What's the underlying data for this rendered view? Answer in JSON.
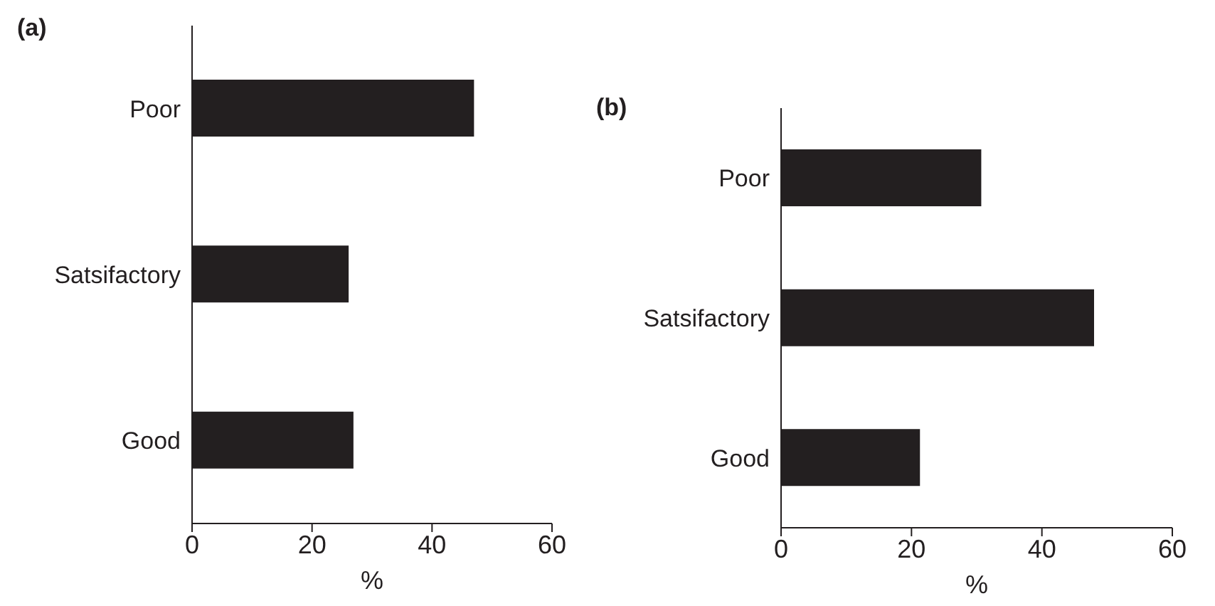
{
  "chart_data": [
    {
      "type": "bar",
      "title": "(a)",
      "orientation": "horizontal",
      "categories": [
        "Poor",
        "Satsifactory",
        "Good"
      ],
      "values": [
        47.0,
        26.1,
        26.9
      ],
      "color": "#231f20",
      "xlim": [
        0,
        60
      ],
      "xticks": [
        0,
        20,
        40,
        60
      ],
      "xlabel": "%",
      "grid": false,
      "legend": false
    },
    {
      "type": "bar",
      "title": "(b)",
      "orientation": "horizontal",
      "categories": [
        "Poor",
        "Satsifactory",
        "Good"
      ],
      "values": [
        30.7,
        48.0,
        21.3
      ],
      "color": "#231f20",
      "xlim": [
        0,
        60
      ],
      "xticks": [
        0,
        20,
        40,
        60
      ],
      "xlabel": "%",
      "grid": false,
      "legend": false
    }
  ]
}
